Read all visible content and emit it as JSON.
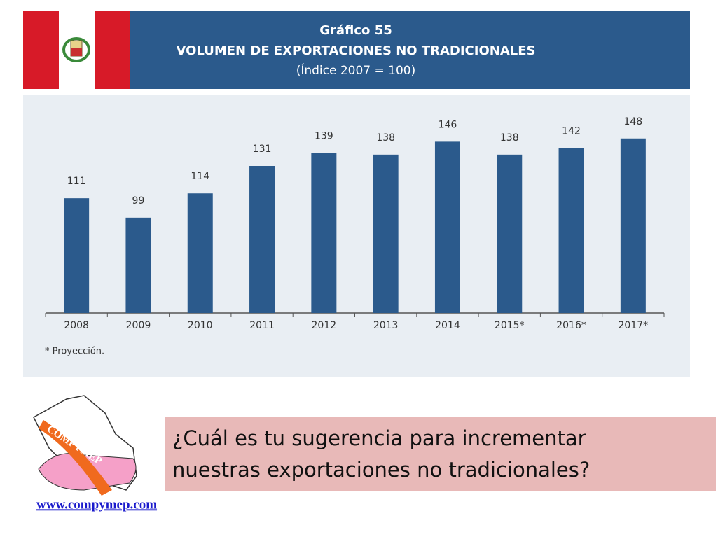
{
  "chart_data": {
    "type": "bar",
    "label": "Gráfico 55",
    "title": "VOLUMEN DE EXPORTACIONES NO TRADICIONALES",
    "subtitle": "(Índice 2007 = 100)",
    "categories": [
      "2008",
      "2009",
      "2010",
      "2011",
      "2012",
      "2013",
      "2014",
      "2015*",
      "2016*",
      "2017*"
    ],
    "values": [
      111,
      99,
      114,
      131,
      139,
      138,
      146,
      138,
      142,
      148
    ],
    "color": "#2b5a8c",
    "ylim": [
      40,
      170
    ],
    "footnote": "* Proyección."
  },
  "slide": {
    "logo_text": "COMPYMEP",
    "question": [
      "¿Cuál es tu sugerencia para incrementar",
      "nuestras exportaciones no tradicionales?"
    ],
    "url": "www.compymep.com"
  }
}
